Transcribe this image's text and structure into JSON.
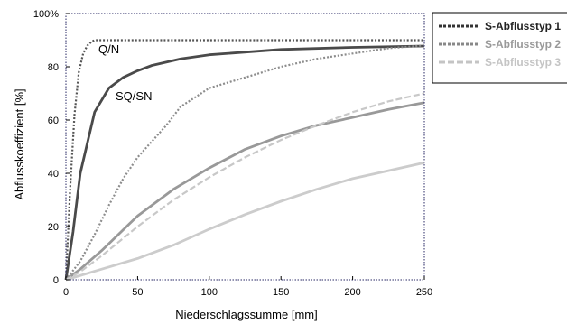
{
  "chart_data": {
    "type": "line",
    "xlabel": "Niederschlagssumme [mm]",
    "ylabel": "Abflusskoeffizient [%]",
    "xlim": [
      0,
      250
    ],
    "ylim": [
      0,
      100
    ],
    "x_ticks": [
      "0",
      "50",
      "100",
      "150",
      "200",
      "250"
    ],
    "y_ticks": [
      "0",
      "20",
      "40",
      "60",
      "80",
      "100%"
    ],
    "grid": false,
    "legend_position": "outside-right-top",
    "annotations": [
      {
        "text": "Q/N",
        "x": 24,
        "y": 84
      },
      {
        "text": "SQ/SN",
        "x": 34,
        "y": 68
      }
    ],
    "legend": [
      {
        "label": "S-Abflusstyp 1",
        "color": "#333333",
        "label_color": "#222222",
        "dash": "dotted"
      },
      {
        "label": "S-Abflusstyp 2",
        "color": "#888888",
        "label_color": "#999999",
        "dash": "dotted"
      },
      {
        "label": "S-Abflusstyp 3",
        "color": "#c4c4c4",
        "label_color": "#c4c4c4",
        "dash": "dashed"
      }
    ],
    "series": [
      {
        "id": "q1",
        "type_no": 1,
        "measure": "Q/N",
        "color": "#555555",
        "width": 2.2,
        "dash": "dotted",
        "x": [
          0,
          3,
          6,
          9,
          12,
          15,
          18,
          20,
          30,
          50,
          100,
          150,
          200,
          250
        ],
        "y": [
          0,
          35,
          62,
          78,
          85,
          88,
          89.5,
          90,
          90,
          90,
          90,
          90,
          90,
          90
        ]
      },
      {
        "id": "s1",
        "type_no": 1,
        "measure": "SQ/SN",
        "color": "#4a4a4a",
        "width": 2.8,
        "dash": "solid",
        "x": [
          0,
          5,
          10,
          20,
          30,
          40,
          50,
          60,
          80,
          100,
          150,
          200,
          250
        ],
        "y": [
          0,
          18,
          40,
          63,
          72,
          76,
          78.5,
          80.5,
          83,
          84.5,
          86.5,
          87.3,
          87.8
        ]
      },
      {
        "id": "q2",
        "type_no": 2,
        "measure": "Q/N",
        "color": "#8c8c8c",
        "width": 2.2,
        "dash": "dotted",
        "x": [
          0,
          10,
          20,
          30,
          40,
          50,
          60,
          70,
          80,
          100,
          125,
          150,
          175,
          200,
          225,
          250
        ],
        "y": [
          0,
          7,
          17,
          28,
          38,
          46,
          52,
          58,
          65,
          72,
          76,
          80,
          83,
          85,
          87,
          88
        ]
      },
      {
        "id": "s2",
        "type_no": 2,
        "measure": "SQ/SN",
        "color": "#999999",
        "width": 2.8,
        "dash": "solid",
        "x": [
          0,
          10,
          25,
          50,
          75,
          100,
          125,
          150,
          175,
          200,
          225,
          250
        ],
        "y": [
          0,
          4,
          11,
          24,
          34,
          42,
          49,
          54,
          58,
          61,
          64,
          66.5
        ]
      },
      {
        "id": "q3",
        "type_no": 3,
        "measure": "Q/N",
        "color": "#c8c8c8",
        "width": 2.2,
        "dash": "dashed",
        "x": [
          0,
          10,
          25,
          50,
          75,
          100,
          125,
          150,
          175,
          200,
          225,
          250
        ],
        "y": [
          0,
          3,
          9,
          20,
          30,
          38.5,
          46,
          52.5,
          58,
          63,
          67,
          70
        ]
      },
      {
        "id": "s3",
        "type_no": 3,
        "measure": "SQ/SN",
        "color": "#cccccc",
        "width": 2.8,
        "dash": "solid",
        "x": [
          0,
          25,
          50,
          75,
          100,
          125,
          150,
          175,
          200,
          225,
          250
        ],
        "y": [
          0,
          4,
          8,
          13,
          19,
          24.5,
          29.5,
          34,
          38,
          41,
          44
        ]
      }
    ]
  }
}
